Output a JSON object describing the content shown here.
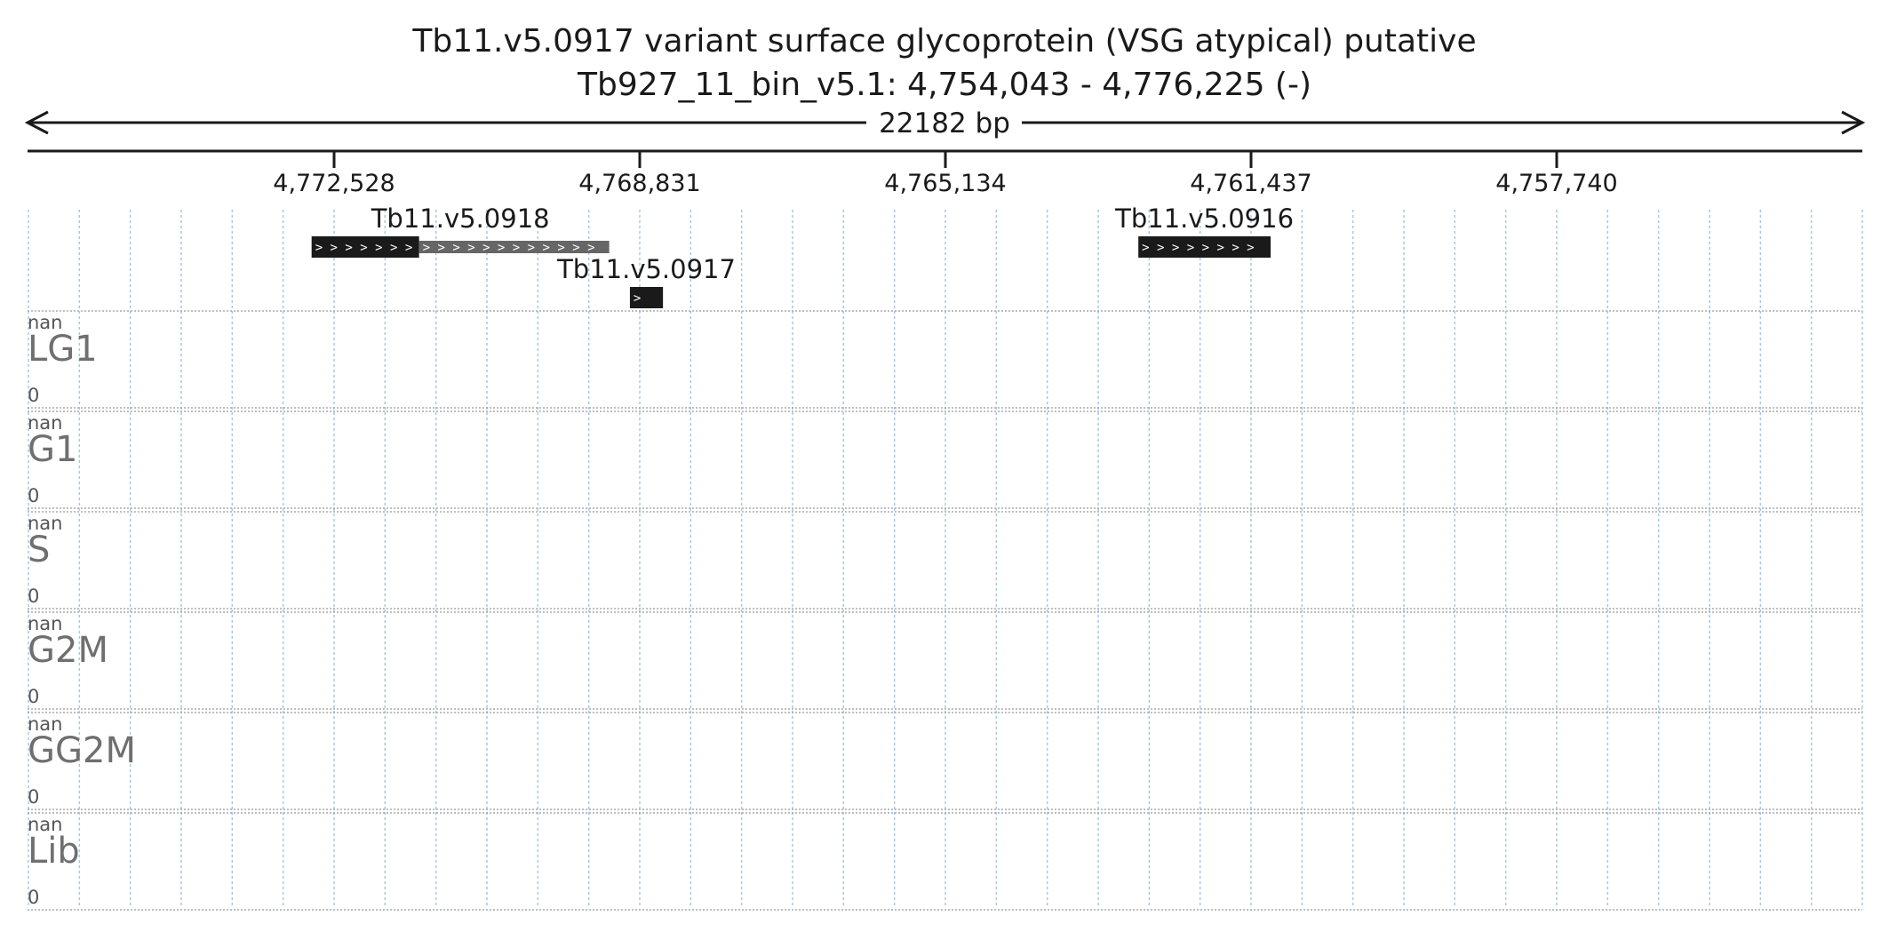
{
  "header": {
    "title_line1": "Tb11.v5.0917  variant surface glycoprotein (VSG  atypical)  putative",
    "title_line2": "Tb927_11_bin_v5.1: 4,754,043 - 4,776,225 (-)",
    "span_label": "22182 bp"
  },
  "region": {
    "start": 4754043,
    "end": 4776225,
    "strand": "-"
  },
  "ticks": [
    {
      "value": 4772528,
      "label": "4,772,528"
    },
    {
      "value": 4768831,
      "label": "4,768,831"
    },
    {
      "value": 4765134,
      "label": "4,765,134"
    },
    {
      "value": 4761437,
      "label": "4,761,437"
    },
    {
      "value": 4757740,
      "label": "4,757,740"
    }
  ],
  "genes": [
    {
      "name": "Tb11.v5.0918",
      "row": 0,
      "parts": [
        {
          "from": 4772800,
          "to": 4771500,
          "kind": "cds"
        },
        {
          "from": 4771500,
          "to": 4769200,
          "kind": "utr"
        }
      ]
    },
    {
      "name": "Tb11.v5.0917",
      "row": 1,
      "parts": [
        {
          "from": 4768950,
          "to": 4768550,
          "kind": "cds"
        }
      ]
    },
    {
      "name": "Tb11.v5.0916",
      "row": 0,
      "parts": [
        {
          "from": 4762800,
          "to": 4761200,
          "kind": "cds"
        }
      ]
    }
  ],
  "tracks": [
    {
      "name": "LG1",
      "max": "nan",
      "min": "0"
    },
    {
      "name": "G1",
      "max": "nan",
      "min": "0"
    },
    {
      "name": "S",
      "max": "nan",
      "min": "0"
    },
    {
      "name": "G2M",
      "max": "nan",
      "min": "0"
    },
    {
      "name": "GG2M",
      "max": "nan",
      "min": "0"
    },
    {
      "name": "Lib",
      "max": "nan",
      "min": "0"
    }
  ],
  "colors": {
    "cds": "#1a1a1a",
    "utr": "#666666",
    "grid": "#a9c7e6",
    "separator": "#999999"
  }
}
